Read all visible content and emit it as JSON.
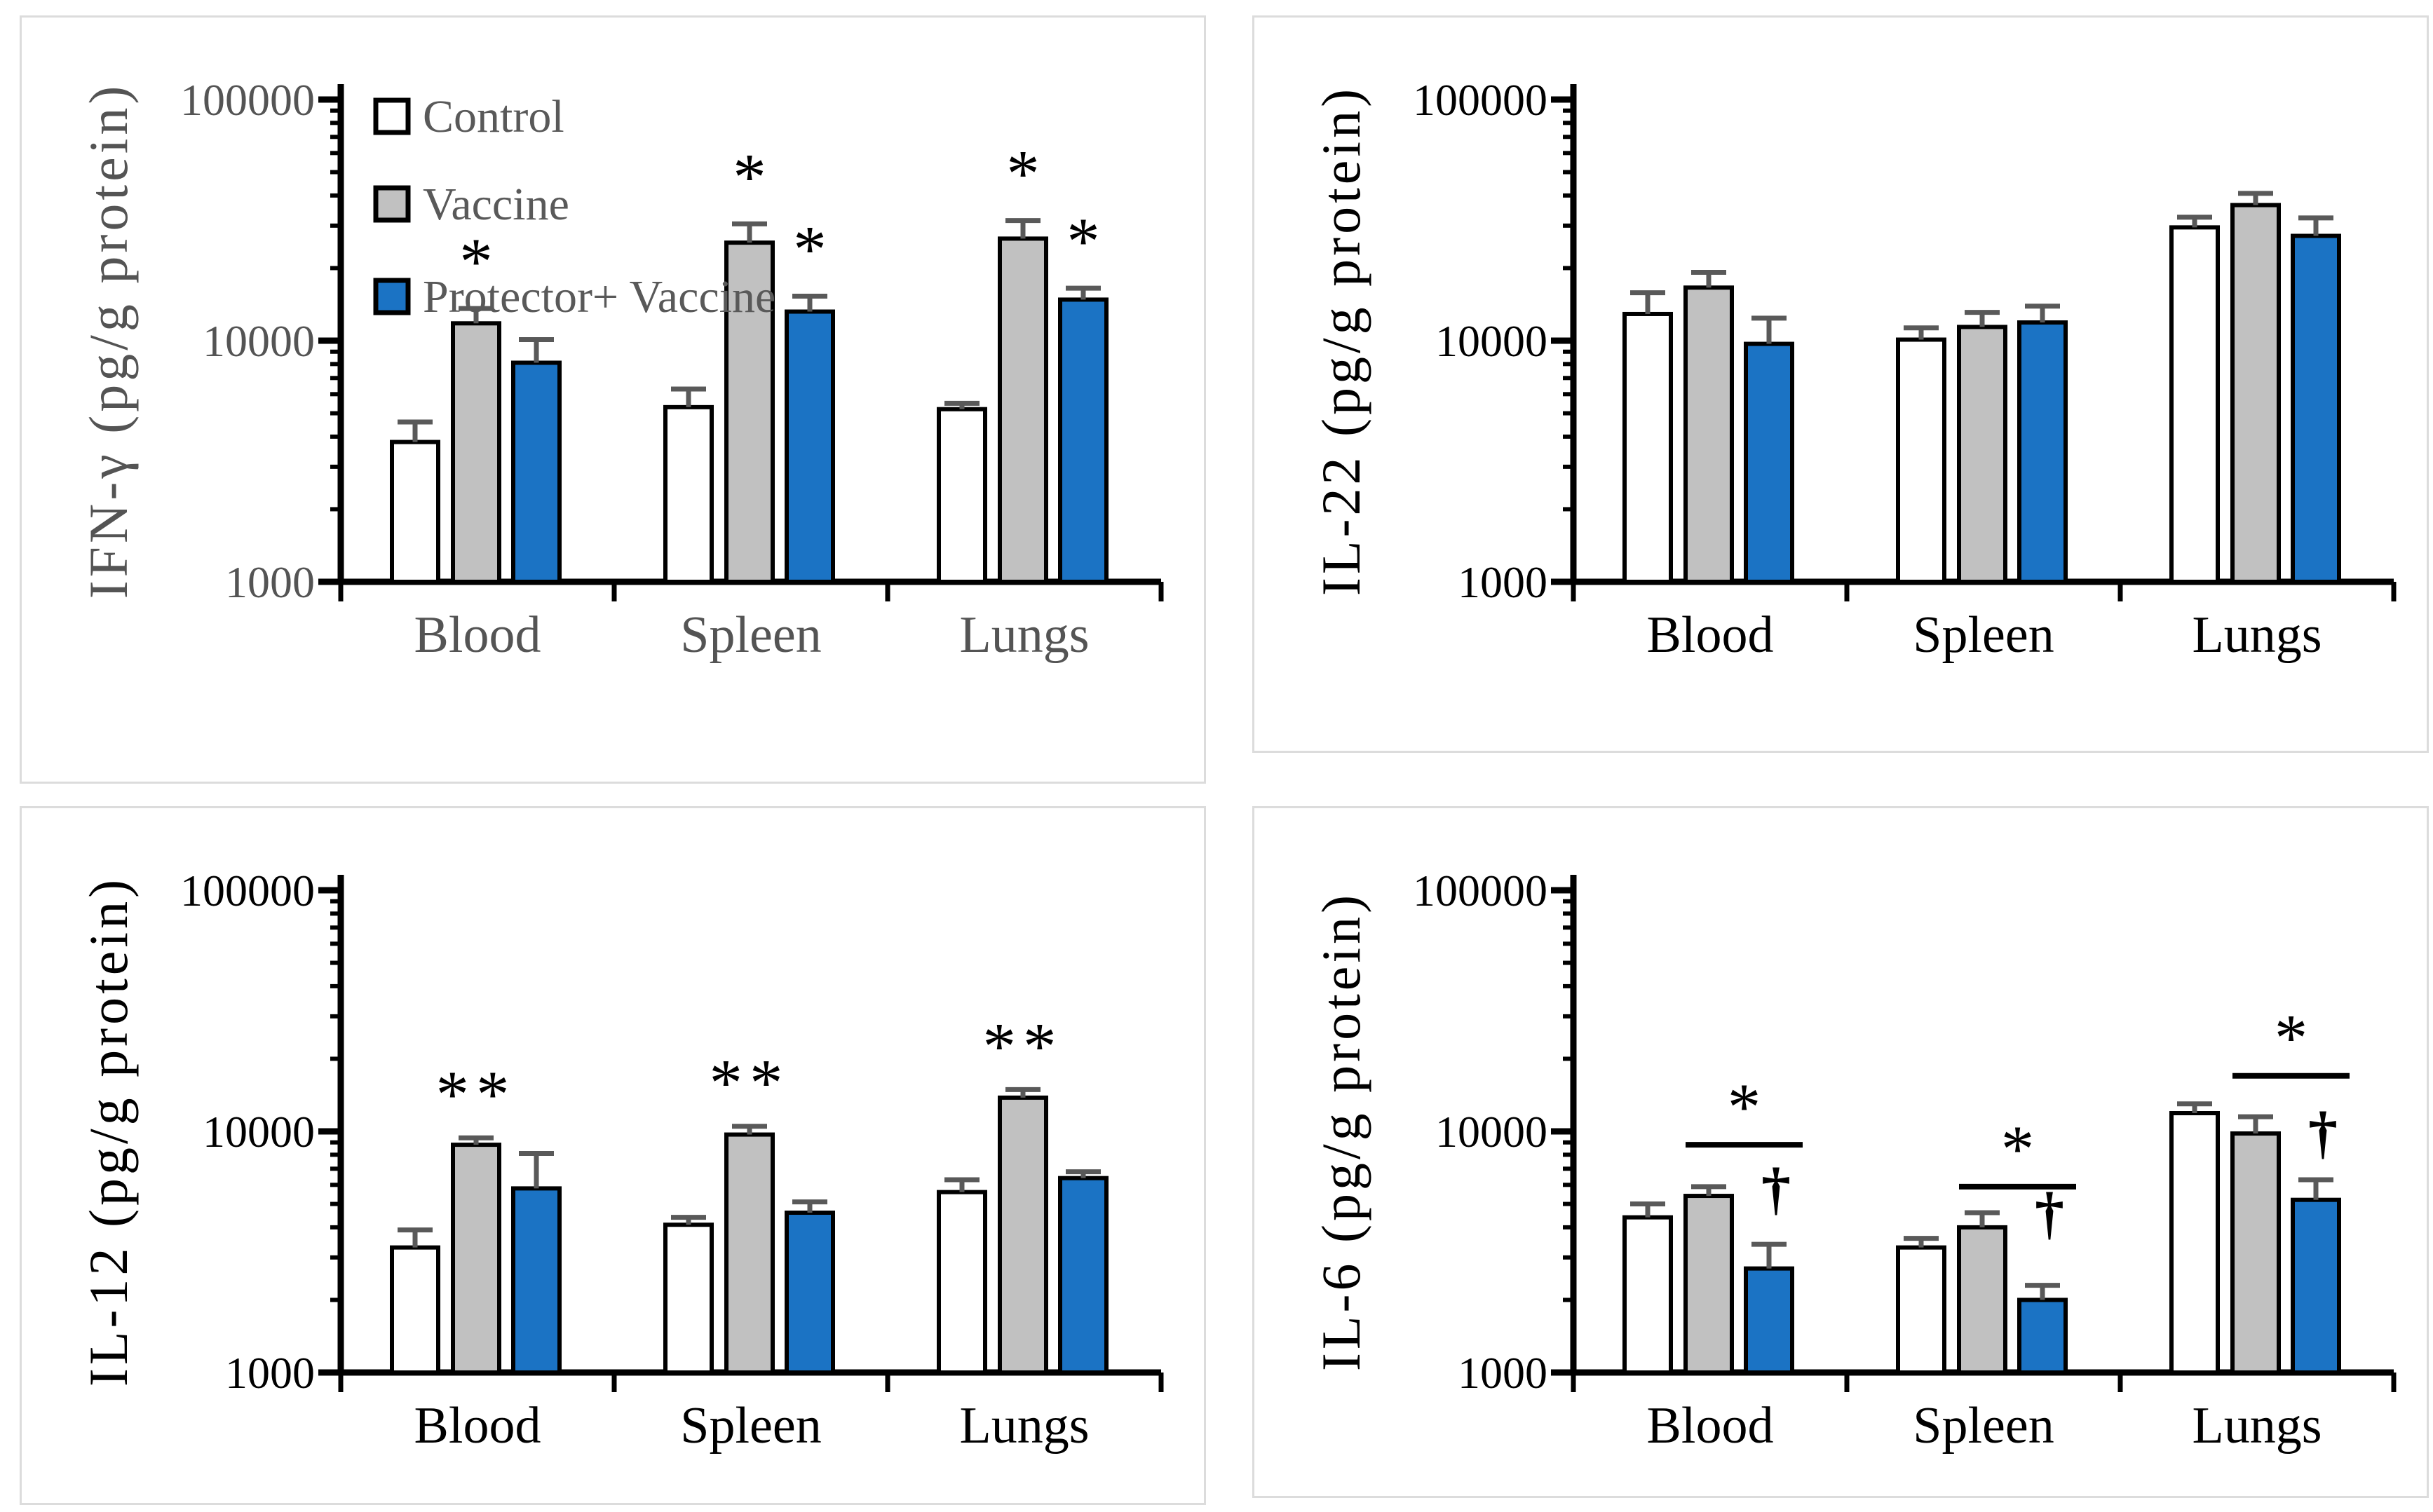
{
  "figure": {
    "description": "Four-panel bar figure of cytokine concentrations in Blood, Spleen and Lungs",
    "tissues": [
      "Blood",
      "Spleen",
      "Lungs"
    ]
  },
  "legend": {
    "items": [
      {
        "label": "Control",
        "color": "#FFFFFF"
      },
      {
        "label": "Vaccine",
        "color": "#C1C1C1"
      },
      {
        "label": "Protector+ Vaccine",
        "color": "#1B73C4"
      }
    ],
    "text_color": "#595959"
  },
  "chart_data": [
    {
      "type": "bar",
      "id": "ifn-gamma",
      "ylabel": "IFN-γ (pg/g protein)",
      "yscale": "log",
      "ylim": [
        1000,
        100000
      ],
      "yticks": [
        "1000",
        "10000",
        "100000"
      ],
      "categories": [
        "Blood",
        "Spleen",
        "Lungs"
      ],
      "text_color": "#545454",
      "show_legend": true,
      "series": [
        {
          "name": "Control",
          "values": [
            3800,
            5300,
            5200
          ],
          "err_hi": [
            4600,
            6300,
            5500
          ]
        },
        {
          "name": "Vaccine",
          "values": [
            11800,
            25500,
            26500
          ],
          "err_hi": [
            13600,
            30500,
            31500
          ]
        },
        {
          "name": "Protector+ Vaccine",
          "values": [
            8100,
            13200,
            14800
          ],
          "err_hi": [
            10100,
            15300,
            16500
          ]
        }
      ],
      "stars": [
        {
          "group": 0,
          "series": 1,
          "text": "*"
        },
        {
          "group": 1,
          "series": 1,
          "text": "*"
        },
        {
          "group": 1,
          "series": 2,
          "text": "*"
        },
        {
          "group": 2,
          "series": 1,
          "text": "*"
        },
        {
          "group": 2,
          "series": 2,
          "text": "*"
        }
      ],
      "brackets": [],
      "daggers": []
    },
    {
      "type": "bar",
      "id": "il-22",
      "ylabel": "IL-22 (pg/g protein)",
      "yscale": "log",
      "ylim": [
        1000,
        100000
      ],
      "yticks": [
        "1000",
        "10000",
        "100000"
      ],
      "categories": [
        "Blood",
        "Spleen",
        "Lungs"
      ],
      "text_color": "#000000",
      "show_legend": false,
      "series": [
        {
          "name": "Control",
          "values": [
            12900,
            10100,
            29500
          ],
          "err_hi": [
            15800,
            11300,
            32500
          ]
        },
        {
          "name": "Vaccine",
          "values": [
            16600,
            11400,
            36500
          ],
          "err_hi": [
            19200,
            13100,
            40800
          ]
        },
        {
          "name": "Protector+ Vaccine",
          "values": [
            9700,
            11900,
            27200
          ],
          "err_hi": [
            12400,
            13900,
            32300
          ]
        }
      ],
      "stars": [],
      "brackets": [],
      "daggers": []
    },
    {
      "type": "bar",
      "id": "il-12",
      "ylabel": "IL-12 (pg/g protein)",
      "yscale": "log",
      "ylim": [
        1000,
        100000
      ],
      "yticks": [
        "1000",
        "10000",
        "100000"
      ],
      "categories": [
        "Blood",
        "Spleen",
        "Lungs"
      ],
      "text_color": "#000000",
      "show_legend": false,
      "series": [
        {
          "name": "Control",
          "values": [
            3300,
            4100,
            5600
          ],
          "err_hi": [
            3900,
            4400,
            6300
          ]
        },
        {
          "name": "Vaccine",
          "values": [
            8800,
            9700,
            13800
          ],
          "err_hi": [
            9400,
            10500,
            14900
          ]
        },
        {
          "name": "Protector+ Vaccine",
          "values": [
            5800,
            4600,
            6400
          ],
          "err_hi": [
            8100,
            5100,
            6800
          ]
        }
      ],
      "stars": [
        {
          "group": 0,
          "series": 1,
          "text": "**"
        },
        {
          "group": 1,
          "series": 1,
          "text": "**"
        },
        {
          "group": 2,
          "series": 1,
          "text": "**"
        }
      ],
      "brackets": [],
      "daggers": []
    },
    {
      "type": "bar",
      "id": "il-6",
      "ylabel": "IL-6 (pg/g protein)",
      "yscale": "log",
      "ylim": [
        1000,
        100000
      ],
      "yticks": [
        "1000",
        "10000",
        "100000"
      ],
      "categories": [
        "Blood",
        "Spleen",
        "Lungs"
      ],
      "text_color": "#000000",
      "show_legend": false,
      "series": [
        {
          "name": "Control",
          "values": [
            4400,
            3300,
            11900
          ],
          "err_hi": [
            5000,
            3600,
            13000
          ]
        },
        {
          "name": "Vaccine",
          "values": [
            5400,
            4000,
            9800
          ],
          "err_hi": [
            5900,
            4600,
            11500
          ]
        },
        {
          "name": "Protector+ Vaccine",
          "values": [
            2700,
            2000,
            5200
          ],
          "err_hi": [
            3400,
            2300,
            6300
          ]
        }
      ],
      "stars": [],
      "brackets": [
        {
          "group": 0,
          "y": 8800,
          "text": "*"
        },
        {
          "group": 1,
          "y": 5900,
          "text": "*"
        },
        {
          "group": 2,
          "y": 17000,
          "text": "*"
        }
      ],
      "daggers": [
        {
          "group": 0,
          "y": 4800,
          "text": "†"
        },
        {
          "group": 1,
          "y": 3800,
          "text": "†"
        },
        {
          "group": 2,
          "y": 8200,
          "text": "†"
        }
      ]
    }
  ]
}
